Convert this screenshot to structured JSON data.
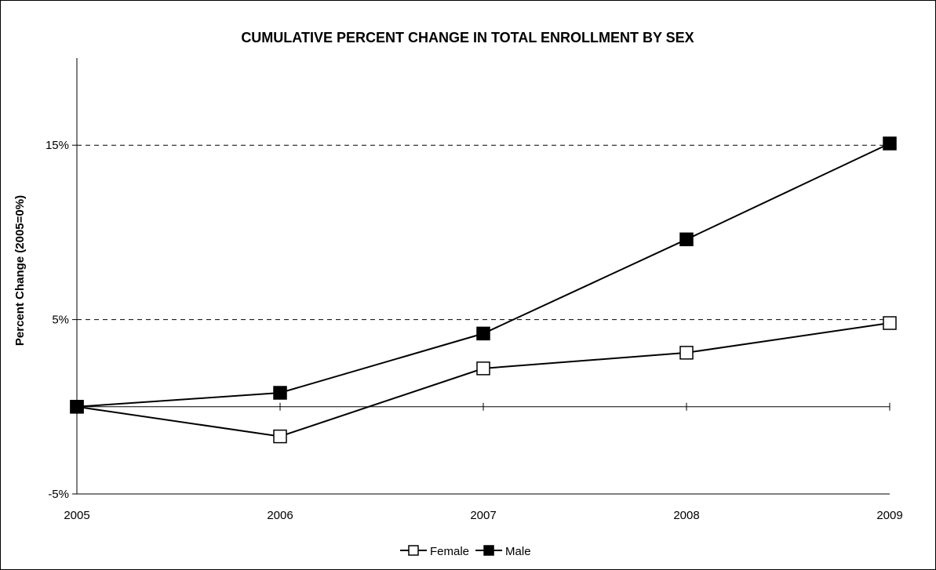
{
  "chart_data": {
    "type": "line",
    "title": "CUMULATIVE PERCENT CHANGE IN TOTAL ENROLLMENT BY SEX",
    "xlabel": "",
    "ylabel": "Percent Change (2005=0%)",
    "x": [
      "2005",
      "2006",
      "2007",
      "2008",
      "2009"
    ],
    "y_ticks": [
      {
        "value": -5,
        "label": "-5%"
      },
      {
        "value": 5,
        "label": "5%"
      },
      {
        "value": 15,
        "label": "15%"
      }
    ],
    "ylim": [
      -5,
      20
    ],
    "grid": "horizontal dashed at 5% and 15%",
    "legend": "bottom",
    "series": [
      {
        "name": "Female",
        "marker": "open-square",
        "color": "#000000",
        "values": [
          0,
          -1.7,
          2.2,
          3.1,
          4.8
        ]
      },
      {
        "name": "Male",
        "marker": "filled-square",
        "color": "#000000",
        "values": [
          0,
          0.8,
          4.2,
          9.6,
          15.1
        ]
      }
    ]
  }
}
